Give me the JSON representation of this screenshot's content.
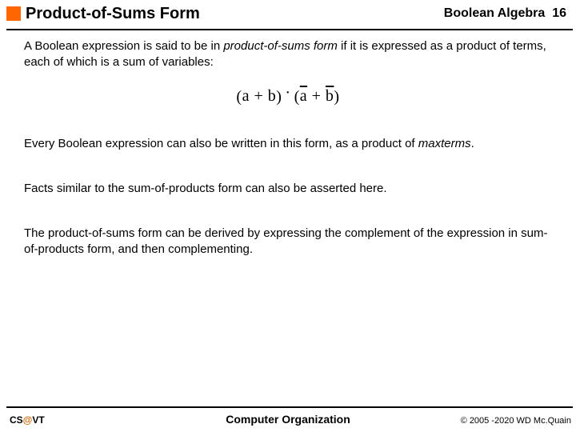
{
  "header": {
    "title": "Product-of-Sums Form",
    "chapter": "Boolean Algebra",
    "slide_number": "16",
    "accent_color": "#ff6600"
  },
  "body": {
    "p1_a": "A Boolean expression is said to be in ",
    "p1_b": "product-of-sums form",
    "p1_c": " if it is expressed as a product of terms, each of which is a sum of variables:",
    "formula": {
      "lpar1": "(",
      "t1a": "a",
      "plus1": " + ",
      "t1b": "b",
      "rpar1": ")",
      "dot": "·",
      "lpar2": "(",
      "t2a": "a",
      "plus2": " + ",
      "t2b": "b",
      "rpar2": ")"
    },
    "p2_a": "Every Boolean expression can also be written in this form, as a product of ",
    "p2_b": "maxterms",
    "p2_c": ".",
    "p3": "Facts similar to the sum-of-products form can also be asserted here.",
    "p4": "The product-of-sums form can be derived by expressing the complement of the expression in sum-of-products form, and then complementing."
  },
  "footer": {
    "left_a": "CS",
    "left_at": "@",
    "left_b": "VT",
    "center": "Computer Organization",
    "right": "© 2005 -2020 WD Mc.Quain"
  }
}
